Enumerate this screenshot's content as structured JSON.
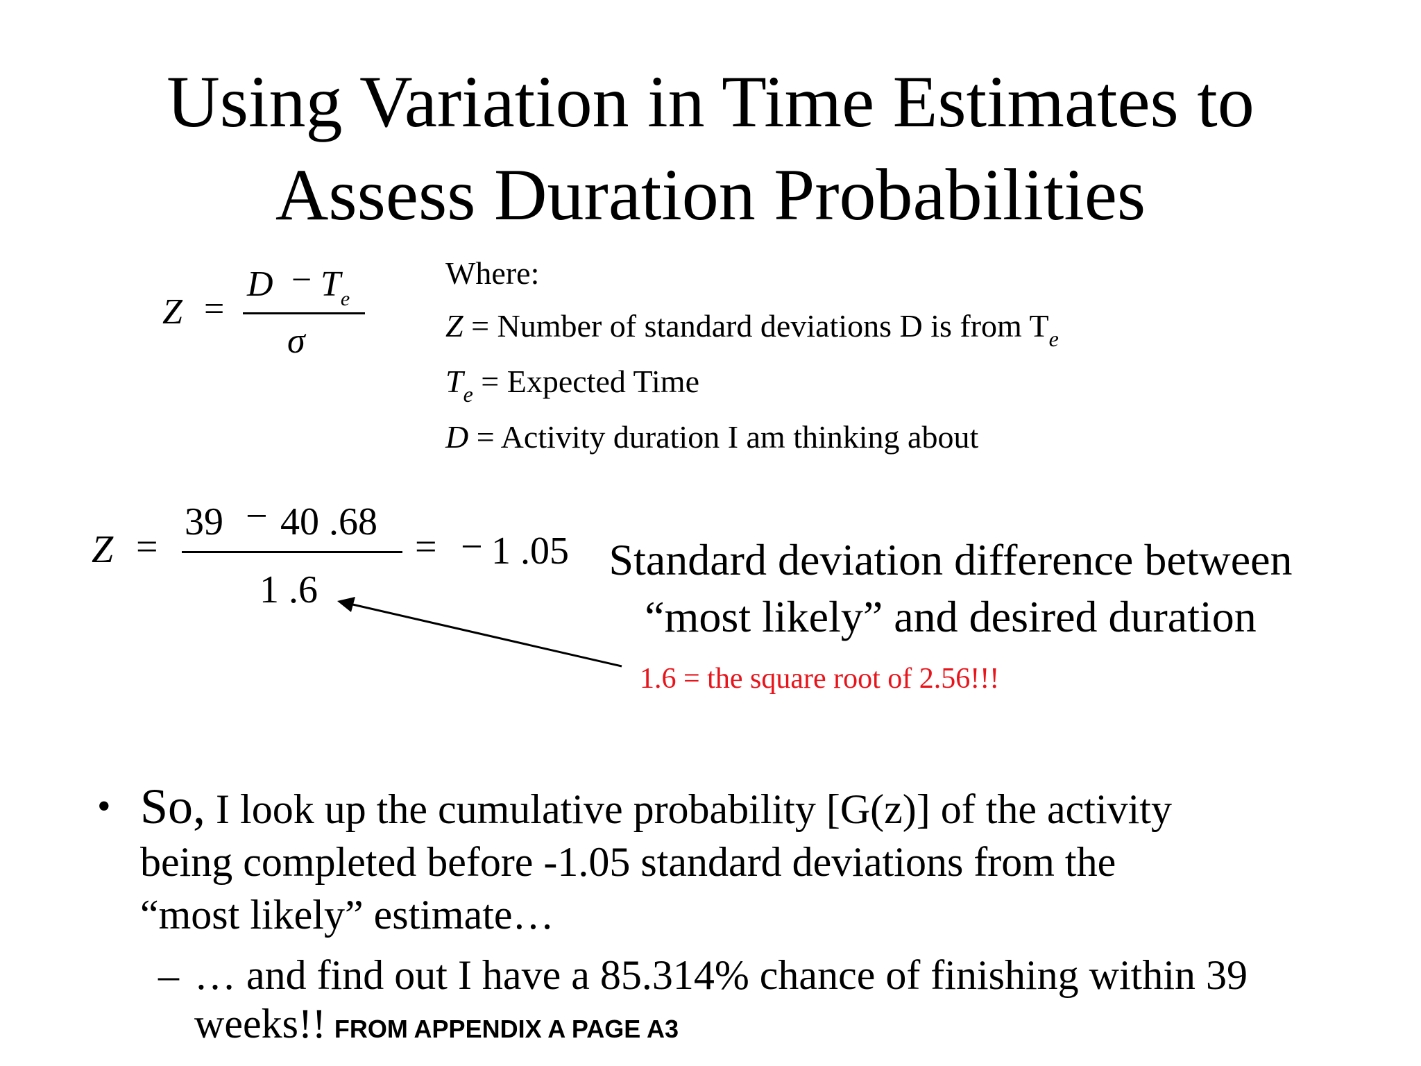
{
  "title": {
    "line1": "Using Variation in Time Estimates to",
    "line2": "Assess Duration Probabilities"
  },
  "formula": {
    "lhs": "Z",
    "eq": "=",
    "num_d": "D",
    "minus": "−",
    "num_t": "T",
    "num_sub": "e",
    "den": "σ"
  },
  "definitions": {
    "heading": "Where:",
    "z_sym": "Z",
    "z_def": " = Number of standard deviations D is from T",
    "z_sub": "e",
    "t_sym": "T",
    "t_sub": "e",
    "t_def": " = Expected Time",
    "d_sym": "D",
    "d_def": " = Activity duration I am thinking about"
  },
  "calculation": {
    "lhs": "Z",
    "eq": "=",
    "num_a": "39",
    "minus": "−",
    "num_b": "40 .68",
    "den": "1 .6",
    "eq2": "=",
    "neg": "−",
    "result": "1 .05"
  },
  "explanation": {
    "line1": "Standard deviation difference between",
    "line2": "“most likely” and desired duration"
  },
  "annotation": {
    "text": "1.6 = the square root of 2.56!!!",
    "color": "#e8141b"
  },
  "bullets": {
    "marker": "•",
    "so": "So,",
    "line1": " I look up the cumulative probability [G(z)] of the activity",
    "line2": "being completed before -1.05 standard deviations from the",
    "line3": "“most likely” estimate…",
    "sub_marker": "–",
    "sub_line1": "… and find out I have a 85.314% chance of finishing within 39",
    "sub_line2": "weeks!!",
    "source": "FROM APPENDIX A PAGE A3"
  }
}
